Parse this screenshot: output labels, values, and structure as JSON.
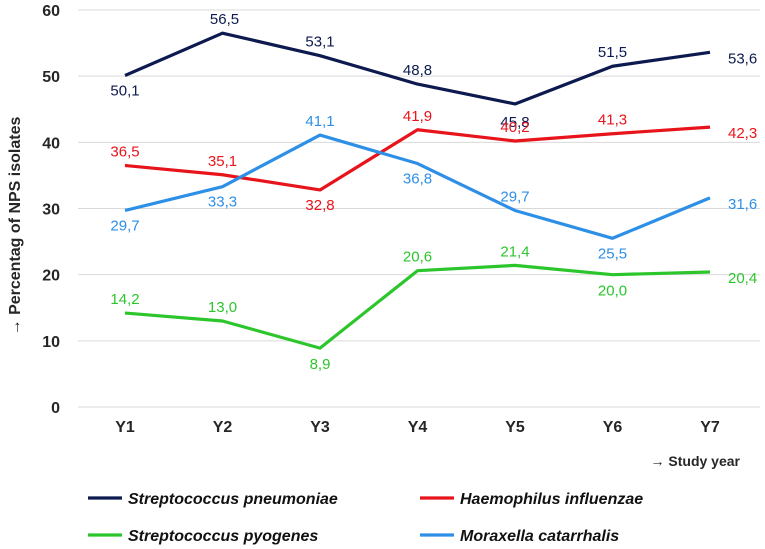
{
  "chart_data": {
    "type": "line",
    "title": "",
    "xlabel": "→ Study year",
    "ylabel": "→ Percentag of NPS isolates",
    "ylim": [
      0,
      60
    ],
    "yticks": [
      "0",
      "10",
      "20",
      "30",
      "40",
      "50",
      "60"
    ],
    "categories": [
      "Y1",
      "Y2",
      "Y3",
      "Y4",
      "Y5",
      "Y6",
      "Y7"
    ],
    "legend_position": "bottom",
    "series": [
      {
        "name": "Streptococcus pneumoniae",
        "color": "#0d1a4f",
        "values": [
          50.1,
          56.5,
          53.1,
          48.8,
          45.8,
          51.5,
          53.6
        ],
        "labels": [
          "50,1",
          "56,5",
          "53,1",
          "48,8",
          "45,8",
          "51,5",
          "53,6"
        ]
      },
      {
        "name": "Haemophilus influenzae",
        "color": "#e8141b",
        "values": [
          36.5,
          35.1,
          32.8,
          41.9,
          40.2,
          41.3,
          42.3
        ],
        "labels": [
          "36,5",
          "35,1",
          "32,8",
          "41,9",
          "40,2",
          "41,3",
          "42,3"
        ]
      },
      {
        "name": "Streptococcus pyogenes",
        "color": "#2cc62c",
        "values": [
          14.2,
          13.0,
          8.9,
          20.6,
          21.4,
          20.0,
          20.4
        ],
        "labels": [
          "14,2",
          "13,0",
          "8,9",
          "20,6",
          "21,4",
          "20,0",
          "20,4"
        ]
      },
      {
        "name": "Moraxella catarrhalis",
        "color": "#2e8fe6",
        "values": [
          29.7,
          33.3,
          41.1,
          36.8,
          29.7,
          25.5,
          31.6
        ],
        "labels": [
          "29,7",
          "33,3",
          "41,1",
          "36,8",
          "29,7",
          "25,5",
          "31,6"
        ]
      }
    ]
  }
}
